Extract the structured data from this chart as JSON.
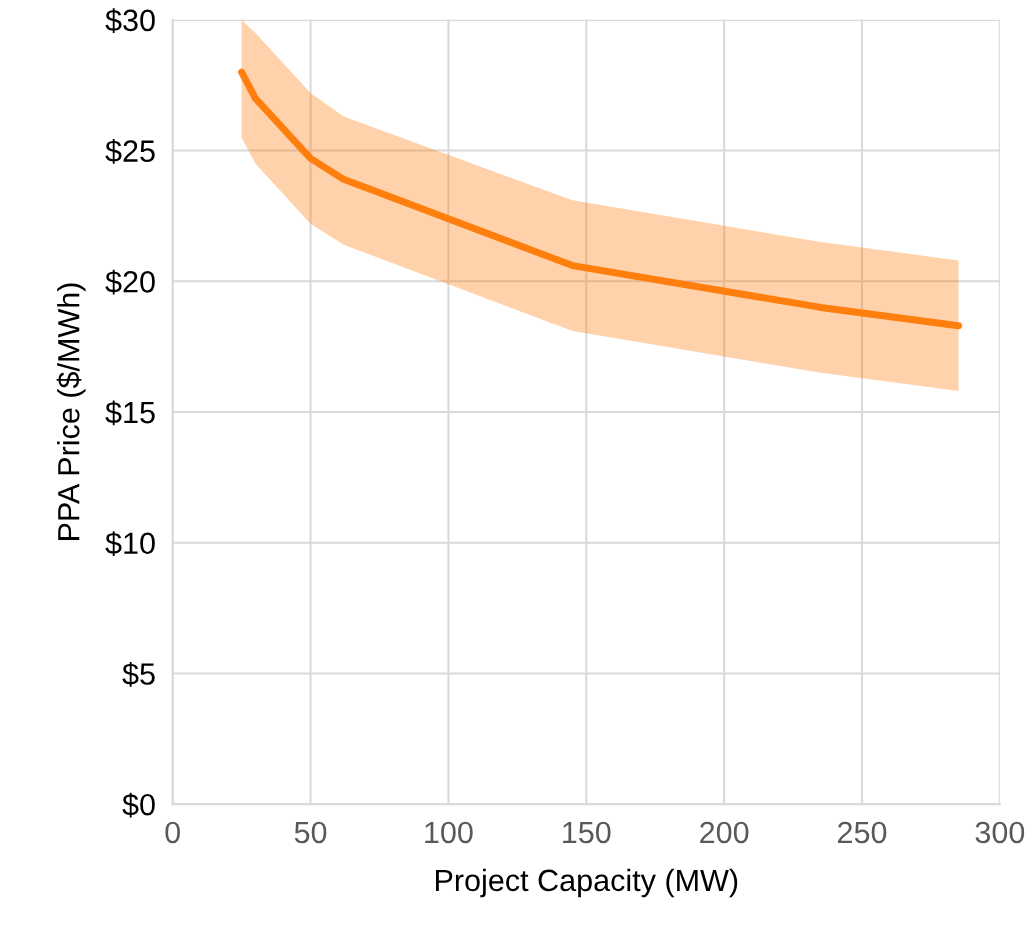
{
  "chart_data": {
    "type": "line",
    "xlabel": "Project Capacity (MW)",
    "ylabel": "PPA Price ($/MWh)",
    "x": [
      25,
      30,
      50,
      62,
      145,
      235,
      285
    ],
    "series": [
      {
        "color": "#ff7f0e",
        "values": [
          28.0,
          27.0,
          24.7,
          23.9,
          20.6,
          19.0,
          18.3
        ],
        "lower": [
          25.5,
          24.5,
          22.2,
          21.4,
          18.1,
          16.5,
          15.8
        ],
        "upper": [
          30.0,
          29.5,
          27.2,
          26.3,
          23.1,
          21.5,
          20.8
        ]
      }
    ],
    "xlim": [
      0,
      300
    ],
    "xticks": [
      0,
      50,
      100,
      150,
      200,
      250,
      300
    ],
    "ylim": [
      0,
      30
    ],
    "yticks": [
      {
        "value": 0,
        "label": "$0"
      },
      {
        "value": 5,
        "label": "$5"
      },
      {
        "value": 10,
        "label": "$10"
      },
      {
        "value": 15,
        "label": "$15"
      },
      {
        "value": 20,
        "label": "$20"
      },
      {
        "value": 25,
        "label": "$25"
      },
      {
        "value": 30,
        "label": "$30"
      }
    ],
    "grid": true,
    "line_style": "solid",
    "marker": "none"
  }
}
